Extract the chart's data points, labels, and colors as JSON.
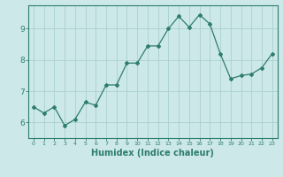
{
  "x": [
    0,
    1,
    2,
    3,
    4,
    5,
    6,
    7,
    8,
    9,
    10,
    11,
    12,
    13,
    14,
    15,
    16,
    17,
    18,
    19,
    20,
    21,
    22,
    23
  ],
  "y": [
    6.5,
    6.3,
    6.5,
    5.9,
    6.1,
    6.65,
    6.55,
    7.2,
    7.2,
    7.9,
    7.9,
    8.45,
    8.45,
    9.0,
    9.4,
    9.05,
    9.45,
    9.15,
    8.2,
    7.4,
    7.5,
    7.55,
    7.75,
    8.2
  ],
  "line_color": "#2e7d6e",
  "marker": "D",
  "markersize": 2.0,
  "linewidth": 0.9,
  "xlabel": "Humidex (Indice chaleur)",
  "xlabel_fontsize": 7,
  "background_color": "#cce8e8",
  "grid_color": "#aad0d0",
  "tick_color": "#2e7d6e",
  "axis_color": "#2e7d6e",
  "ylim": [
    5.5,
    9.75
  ],
  "yticks": [
    6,
    7,
    8,
    9
  ],
  "xticks": [
    0,
    1,
    2,
    3,
    4,
    5,
    6,
    7,
    8,
    9,
    10,
    11,
    12,
    13,
    14,
    15,
    16,
    17,
    18,
    19,
    20,
    21,
    22,
    23
  ]
}
